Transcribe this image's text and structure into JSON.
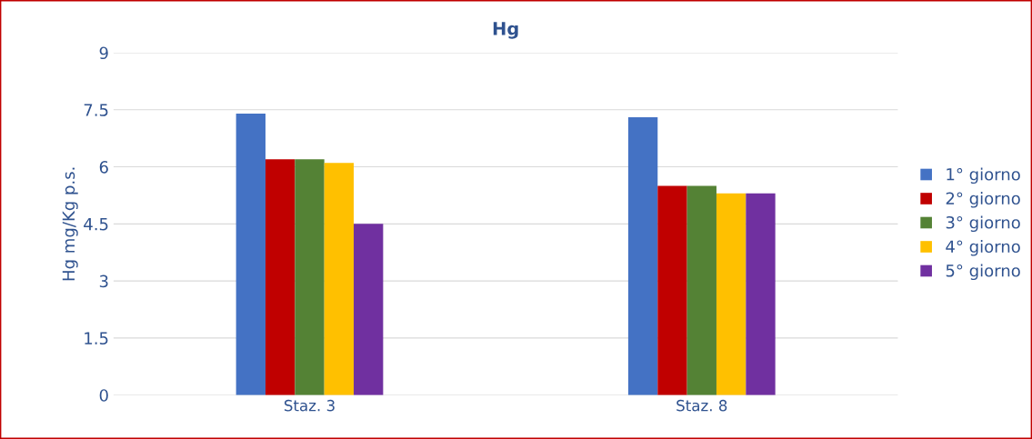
{
  "chart_data": {
    "type": "bar",
    "title": "Hg",
    "ylabel": "Hg mg/Kg p.s.",
    "categories": [
      "Staz. 3",
      "Staz. 8"
    ],
    "series": [
      {
        "name": "1° giorno",
        "color": "#4472c4",
        "values": [
          7.4,
          7.3
        ]
      },
      {
        "name": "2° giorno",
        "color": "#c00000",
        "values": [
          6.2,
          5.5
        ]
      },
      {
        "name": "3° giorno",
        "color": "#548235",
        "values": [
          6.2,
          5.5
        ]
      },
      {
        "name": "4° giorno",
        "color": "#ffc000",
        "values": [
          6.1,
          5.3
        ]
      },
      {
        "name": "5° giorno",
        "color": "#7030a0",
        "values": [
          4.5,
          5.3
        ]
      }
    ],
    "ylim": [
      0,
      9
    ],
    "yticks": [
      0,
      1.5,
      3,
      4.5,
      6,
      7.5,
      9
    ],
    "grid": "y",
    "legend": "right"
  }
}
